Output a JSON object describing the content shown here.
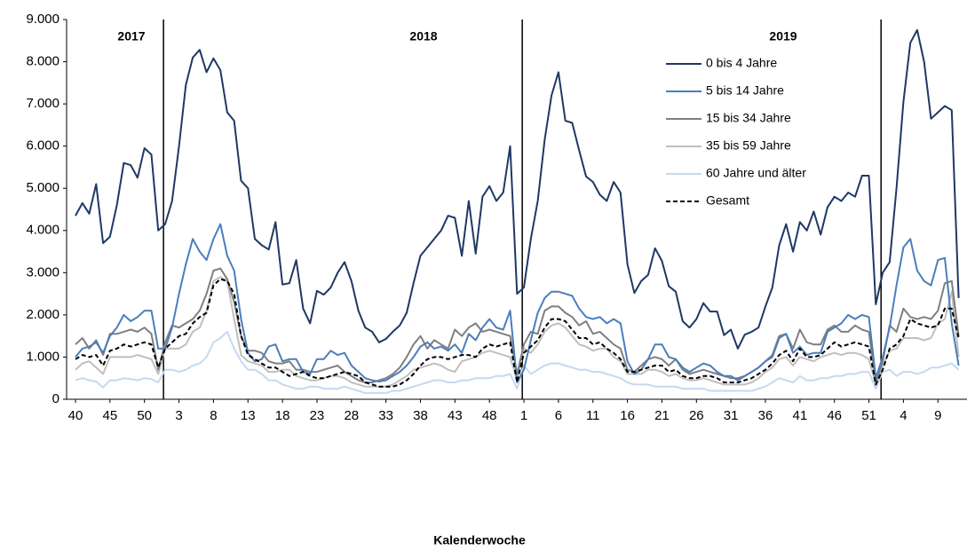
{
  "chart_data": {
    "type": "line",
    "x_label": "Kalenderwoche",
    "annotations": [
      "2017",
      "2018",
      "2019"
    ],
    "categories": [
      "40",
      null,
      null,
      null,
      null,
      "45",
      null,
      null,
      null,
      null,
      "50",
      null,
      null,
      null,
      null,
      "3",
      null,
      null,
      null,
      null,
      "8",
      null,
      null,
      null,
      null,
      "13",
      null,
      null,
      null,
      null,
      "18",
      null,
      null,
      null,
      null,
      "23",
      null,
      null,
      null,
      null,
      "28",
      null,
      null,
      null,
      null,
      "33",
      null,
      null,
      null,
      null,
      "38",
      null,
      null,
      null,
      null,
      "43",
      null,
      null,
      null,
      null,
      "48",
      null,
      null,
      null,
      null,
      "1",
      null,
      null,
      null,
      null,
      "6",
      null,
      null,
      null,
      null,
      "11",
      null,
      null,
      null,
      null,
      "16",
      null,
      null,
      null,
      null,
      "21",
      null,
      null,
      null,
      null,
      "26",
      null,
      null,
      null,
      null,
      "31",
      null,
      null,
      null,
      null,
      "36",
      null,
      null,
      null,
      null,
      "41",
      null,
      null,
      null,
      null,
      "46",
      null,
      null,
      null,
      null,
      "51",
      null,
      null,
      null,
      null,
      "4",
      null,
      null,
      null,
      null,
      "9",
      null,
      null,
      null
    ],
    "series": [
      {
        "name": "0 bis 4 Jahre",
        "color": "#1f3864",
        "dash": false,
        "values": [
          4350,
          4650,
          4400,
          5100,
          3700,
          3850,
          4600,
          5600,
          5550,
          5250,
          5950,
          5800,
          4000,
          4150,
          4700,
          6000,
          7450,
          8100,
          8280,
          7750,
          8080,
          7800,
          6800,
          6600,
          5180,
          5000,
          3800,
          3650,
          3550,
          4200,
          2720,
          2750,
          3300,
          2150,
          1800,
          2570,
          2480,
          2650,
          3000,
          3250,
          2800,
          2100,
          1700,
          1600,
          1350,
          1430,
          1600,
          1750,
          2050,
          2750,
          3400,
          3600,
          3800,
          4000,
          4350,
          4300,
          3400,
          4700,
          3450,
          4800,
          5050,
          4700,
          4900,
          6000,
          2500,
          2650,
          3800,
          4700,
          6150,
          7200,
          7750,
          6600,
          6550,
          5900,
          5280,
          5150,
          4850,
          4700,
          5150,
          4900,
          3200,
          2520,
          2800,
          2950,
          3580,
          3280,
          2680,
          2550,
          1850,
          1700,
          1900,
          2280,
          2080,
          2080,
          1520,
          1650,
          1200,
          1530,
          1600,
          1700,
          2200,
          2650,
          3650,
          4150,
          3500,
          4200,
          4000,
          4450,
          3900,
          4550,
          4800,
          4700,
          4900,
          4800,
          5300,
          5300,
          2250,
          3000,
          3250,
          5000,
          7050,
          8450,
          8750,
          8000,
          6650,
          6800,
          6950,
          6850,
          2400
        ]
      },
      {
        "name": "5 bis 14 Jahre",
        "color": "#4a7ebb",
        "dash": false,
        "values": [
          1000,
          1200,
          1250,
          1350,
          1100,
          1500,
          1700,
          2000,
          1850,
          1950,
          2100,
          2100,
          1200,
          1200,
          1700,
          2500,
          3200,
          3800,
          3500,
          3300,
          3800,
          4150,
          3400,
          3050,
          1900,
          1100,
          900,
          950,
          1250,
          1300,
          900,
          950,
          950,
          650,
          600,
          950,
          950,
          1150,
          1050,
          1100,
          800,
          650,
          500,
          450,
          420,
          450,
          550,
          650,
          800,
          1000,
          1250,
          1350,
          1200,
          1250,
          1150,
          1300,
          1100,
          1550,
          1400,
          1700,
          1900,
          1700,
          1650,
          2100,
          400,
          700,
          1400,
          2050,
          2400,
          2550,
          2550,
          2500,
          2450,
          2150,
          1950,
          1900,
          1950,
          1800,
          1900,
          1800,
          900,
          600,
          700,
          950,
          1300,
          1300,
          1000,
          950,
          750,
          650,
          750,
          850,
          800,
          650,
          550,
          550,
          450,
          550,
          650,
          750,
          900,
          1000,
          1450,
          1550,
          1100,
          1250,
          1050,
          1100,
          1100,
          1600,
          1700,
          1800,
          2000,
          1900,
          2000,
          1950,
          500,
          1000,
          1700,
          2700,
          3600,
          3800,
          3050,
          2800,
          2700,
          3300,
          3350,
          1800,
          800
        ]
      },
      {
        "name": "15 bis 34 Jahre",
        "color": "#7f7f7f",
        "dash": false,
        "values": [
          1300,
          1450,
          1200,
          1400,
          1050,
          1550,
          1550,
          1600,
          1650,
          1600,
          1700,
          1550,
          700,
          1350,
          1750,
          1700,
          1800,
          1900,
          2100,
          2500,
          3050,
          3100,
          2850,
          2300,
          1500,
          1150,
          1150,
          1100,
          900,
          850,
          850,
          900,
          700,
          700,
          650,
          650,
          700,
          750,
          800,
          650,
          550,
          450,
          400,
          400,
          450,
          500,
          600,
          750,
          1000,
          1300,
          1500,
          1200,
          1400,
          1300,
          1200,
          1650,
          1500,
          1700,
          1800,
          1600,
          1650,
          1600,
          1550,
          1500,
          600,
          1300,
          1600,
          1550,
          2100,
          2200,
          2200,
          2050,
          1950,
          1750,
          1850,
          1550,
          1600,
          1450,
          1300,
          1200,
          700,
          650,
          800,
          950,
          1000,
          950,
          800,
          950,
          700,
          600,
          650,
          700,
          650,
          600,
          550,
          500,
          500,
          550,
          650,
          750,
          900,
          1050,
          1500,
          1550,
          1200,
          1650,
          1350,
          1300,
          1300,
          1650,
          1750,
          1600,
          1600,
          1750,
          1650,
          1600,
          400,
          900,
          1750,
          1600,
          2150,
          1950,
          1900,
          1950,
          1900,
          2100,
          2750,
          2800,
          1500
        ]
      },
      {
        "name": "35 bis 59 Jahre",
        "color": "#bfbfbf",
        "dash": false,
        "values": [
          700,
          850,
          900,
          750,
          600,
          1000,
          1000,
          1000,
          1000,
          1050,
          1000,
          950,
          600,
          1200,
          1200,
          1200,
          1300,
          1600,
          1700,
          2100,
          2800,
          2900,
          2800,
          1900,
          1050,
          900,
          850,
          800,
          650,
          650,
          700,
          700,
          550,
          500,
          450,
          450,
          500,
          550,
          550,
          500,
          400,
          350,
          300,
          300,
          300,
          300,
          350,
          450,
          550,
          700,
          750,
          800,
          850,
          800,
          700,
          650,
          900,
          950,
          1000,
          1100,
          1150,
          1100,
          1050,
          1000,
          450,
          1200,
          1100,
          1300,
          1600,
          1750,
          1800,
          1700,
          1500,
          1300,
          1250,
          1150,
          1200,
          1200,
          1000,
          900,
          600,
          600,
          600,
          700,
          700,
          650,
          550,
          600,
          500,
          450,
          450,
          500,
          450,
          400,
          350,
          350,
          350,
          350,
          400,
          500,
          650,
          750,
          950,
          1000,
          800,
          1000,
          950,
          900,
          1000,
          1050,
          1100,
          1050,
          1100,
          1100,
          1050,
          950,
          350,
          800,
          1150,
          1200,
          1450,
          1450,
          1450,
          1400,
          1450,
          1800,
          1900,
          2550,
          1000
        ]
      },
      {
        "name": "60 Jahre und älter",
        "color": "#c5d9f1",
        "dash": false,
        "values": [
          450,
          500,
          450,
          420,
          280,
          450,
          450,
          500,
          480,
          450,
          500,
          480,
          400,
          700,
          700,
          650,
          700,
          800,
          850,
          1000,
          1350,
          1450,
          1600,
          1200,
          900,
          700,
          700,
          600,
          450,
          450,
          350,
          300,
          250,
          250,
          300,
          300,
          250,
          250,
          250,
          300,
          250,
          200,
          150,
          150,
          150,
          150,
          200,
          200,
          250,
          300,
          350,
          400,
          450,
          450,
          400,
          400,
          450,
          450,
          500,
          500,
          500,
          550,
          550,
          600,
          250,
          800,
          600,
          700,
          800,
          850,
          850,
          800,
          750,
          700,
          700,
          650,
          650,
          600,
          550,
          500,
          400,
          350,
          350,
          350,
          300,
          300,
          300,
          300,
          250,
          250,
          250,
          250,
          200,
          200,
          200,
          200,
          200,
          200,
          200,
          250,
          300,
          400,
          500,
          450,
          400,
          550,
          450,
          450,
          500,
          500,
          550,
          550,
          600,
          600,
          650,
          650,
          250,
          650,
          700,
          550,
          650,
          650,
          600,
          650,
          750,
          750,
          800,
          850,
          700
        ]
      },
      {
        "name": "Gesamt",
        "color": "#000000",
        "dash": true,
        "values": [
          950,
          1050,
          1000,
          1050,
          800,
          1150,
          1200,
          1300,
          1250,
          1300,
          1350,
          1300,
          750,
          1200,
          1350,
          1500,
          1550,
          1800,
          1950,
          2050,
          2700,
          2850,
          2800,
          2500,
          1500,
          1050,
          950,
          850,
          750,
          750,
          650,
          550,
          600,
          650,
          550,
          500,
          500,
          550,
          600,
          650,
          600,
          550,
          400,
          350,
          300,
          300,
          300,
          350,
          450,
          600,
          800,
          950,
          1000,
          1000,
          950,
          1000,
          1050,
          1050,
          1000,
          1200,
          1300,
          1250,
          1300,
          1350,
          400,
          1100,
          1250,
          1400,
          1700,
          1900,
          1900,
          1850,
          1650,
          1450,
          1450,
          1300,
          1350,
          1200,
          1100,
          950,
          650,
          650,
          700,
          750,
          800,
          800,
          650,
          700,
          550,
          500,
          500,
          550,
          550,
          500,
          400,
          400,
          400,
          450,
          500,
          600,
          700,
          850,
          1050,
          1150,
          900,
          1200,
          1000,
          1000,
          1050,
          1200,
          1350,
          1250,
          1300,
          1350,
          1300,
          1250,
          350,
          700,
          1200,
          1300,
          1500,
          1900,
          1800,
          1750,
          1700,
          1750,
          2150,
          2150,
          1450
        ]
      }
    ],
    "ylim": [
      0,
      9000
    ],
    "yticks": [
      0,
      {
        "value": 1000,
        "label": "1.000"
      },
      {
        "value": 2000,
        "label": "2.000"
      },
      {
        "value": 3000,
        "label": "3.000"
      },
      {
        "value": 4000,
        "label": "4.000"
      },
      {
        "value": 5000,
        "label": "5.000"
      },
      {
        "value": 6000,
        "label": "6.000"
      },
      {
        "value": 7000,
        "label": "7.000"
      },
      {
        "value": 8000,
        "label": "8.000"
      },
      {
        "value": 9000,
        "label": "9.000"
      }
    ],
    "grid": false,
    "legend": "upper right"
  }
}
